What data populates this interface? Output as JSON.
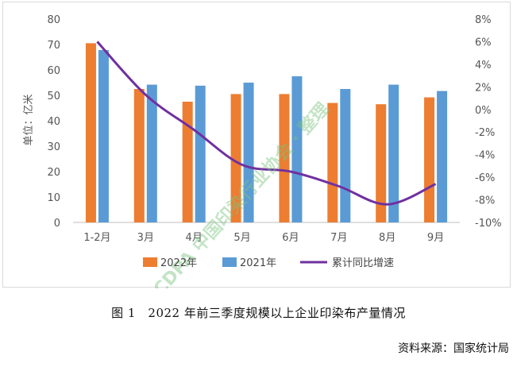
{
  "chart_data": {
    "type": "bar",
    "categories": [
      "1-2月",
      "3月",
      "4月",
      "5月",
      "6月",
      "7月",
      "8月",
      "9月"
    ],
    "series": [
      {
        "name": "2022年",
        "kind": "bar",
        "axis": "left",
        "color": "#ED7D31",
        "values": [
          70.5,
          52.5,
          47.5,
          50.5,
          50.5,
          47,
          46.5,
          49.2
        ]
      },
      {
        "name": "2021年",
        "kind": "bar",
        "axis": "left",
        "color": "#5B9BD5",
        "values": [
          67.8,
          54.2,
          53.8,
          55,
          57.5,
          52.5,
          54.2,
          51.7
        ]
      },
      {
        "name": "累计同比增速",
        "kind": "line",
        "axis": "right",
        "color": "#7030A0",
        "values": [
          6.0,
          1.3,
          -1.8,
          -4.9,
          -5.5,
          -6.8,
          -8.4,
          -6.6
        ]
      }
    ],
    "ylabel": "单位：亿米",
    "ylim": [
      0,
      80
    ],
    "yticks": [
      0,
      10,
      20,
      30,
      40,
      50,
      60,
      70,
      80
    ],
    "y2lim": [
      -10,
      8
    ],
    "y2ticks": [
      "-10%",
      "-8%",
      "-6%",
      "-4%",
      "-2%",
      "0%",
      "2%",
      "4%",
      "6%",
      "8%"
    ],
    "legend_position": "bottom",
    "grid": false
  },
  "watermark": "CDPA 中国印染行业协会 · 整理",
  "caption": "图 1　2022 年前三季度规模以上企业印染布产量情况",
  "source": "资料来源：国家统计局"
}
